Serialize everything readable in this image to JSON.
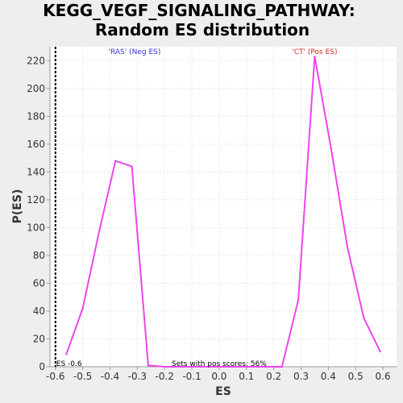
{
  "chart_data": {
    "type": "line",
    "title_line1": "KEGG_VEGF_SIGNALING_PATHWAY:",
    "title_line2": "Random ES distribution",
    "xlabel": "ES",
    "ylabel": "P(ES)",
    "xlim": [
      -0.62,
      0.65
    ],
    "ylim": [
      0,
      230
    ],
    "x_ticks": [
      -0.6,
      -0.5,
      -0.4,
      -0.3,
      -0.2,
      -0.1,
      0.0,
      0.1,
      0.2,
      0.3,
      0.4,
      0.5,
      0.6
    ],
    "x_tick_labels": [
      "-0.6",
      "-0.5",
      "-0.4",
      "-0.3",
      "-0.2",
      "-0.1",
      "0.0",
      "0.1",
      "0.2",
      "0.3",
      "0.4",
      "0.5",
      "0.6"
    ],
    "y_ticks": [
      0,
      20,
      40,
      60,
      80,
      100,
      120,
      140,
      160,
      180,
      200,
      220
    ],
    "y_tick_labels": [
      "0",
      "20",
      "40",
      "60",
      "80",
      "100",
      "120",
      "140",
      "160",
      "180",
      "200",
      "220"
    ],
    "grid": true,
    "series": [
      {
        "color": "#ee44ee",
        "x": [
          -0.56,
          -0.5,
          -0.44,
          -0.38,
          -0.32,
          -0.26,
          -0.2,
          0.0,
          0.17,
          0.23,
          0.29,
          0.35,
          0.41,
          0.47,
          0.53,
          0.59
        ],
        "y": [
          9,
          42,
          97,
          148,
          144,
          1,
          0,
          0,
          0,
          0,
          48,
          223,
          157,
          86,
          35,
          11
        ]
      }
    ],
    "es_line": {
      "x": -0.6,
      "label": "ES -0.6"
    },
    "annotations": {
      "neg_label": "'RAS' (Neg ES)",
      "pos_label": "'CT' (Pos ES)",
      "neg_color": "#3333cc",
      "pos_color": "#dd2222",
      "pos_scores": "Sets with pos scores: 56%"
    }
  }
}
